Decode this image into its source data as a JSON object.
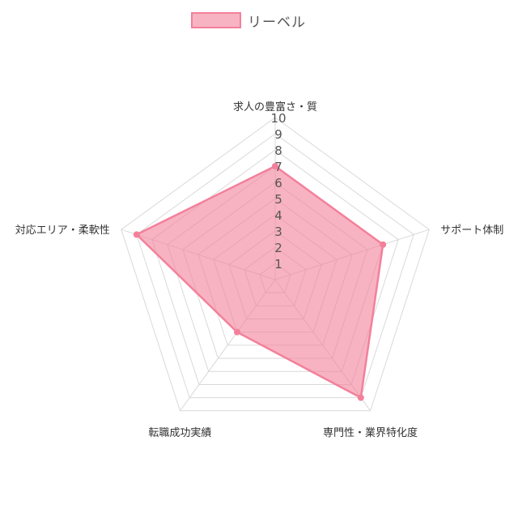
{
  "legend": {
    "label": "リーベル"
  },
  "colors": {
    "fill": "rgba(243,128,154,0.6)",
    "stroke": "#f3809a",
    "grid": "#d9d9d9",
    "text": "#555555"
  },
  "chart_data": {
    "type": "radar",
    "categories": [
      "求人の豊富さ・質",
      "サポート体制",
      "専門性・業界特化度",
      "転職成功実績",
      "対応エリア・柔軟性"
    ],
    "series": [
      {
        "name": "リーベル",
        "values": [
          7,
          7,
          9,
          4,
          9
        ]
      }
    ],
    "rlim": [
      0,
      10
    ],
    "ticks": [
      "1",
      "2",
      "3",
      "4",
      "5",
      "6",
      "7",
      "8",
      "9",
      "10"
    ],
    "legend_position": "top-center",
    "grid": true
  }
}
